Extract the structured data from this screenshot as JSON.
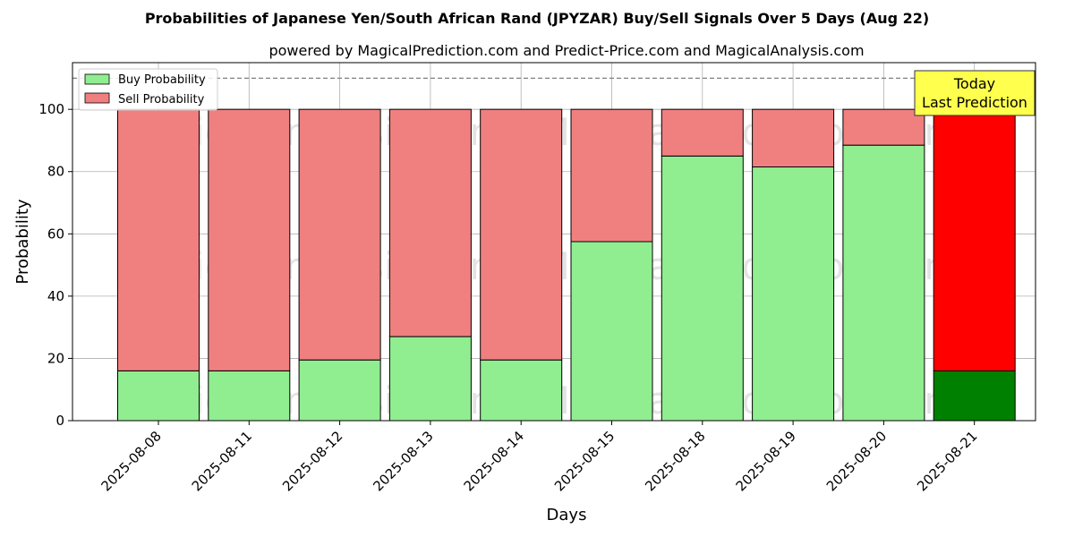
{
  "chart_data": {
    "type": "bar",
    "stacked": true,
    "title": "Probabilities of Japanese Yen/South African Rand (JPYZAR) Buy/Sell Signals Over 5 Days (Aug 22)",
    "subtitle": "powered by MagicalPrediction.com and Predict-Price.com and MagicalAnalysis.com",
    "xlabel": "Days",
    "ylabel": "Probability",
    "ylim": [
      0,
      115
    ],
    "yticks": [
      0,
      20,
      40,
      60,
      80,
      100
    ],
    "grid": true,
    "legend_position": "top-left",
    "reference_line": 110,
    "categories": [
      "2025-08-08",
      "2025-08-11",
      "2025-08-12",
      "2025-08-13",
      "2025-08-14",
      "2025-08-15",
      "2025-08-18",
      "2025-08-19",
      "2025-08-20",
      "2025-08-21"
    ],
    "series": [
      {
        "name": "Buy Probability",
        "values": [
          16,
          16,
          19.5,
          27,
          19.5,
          57.5,
          85,
          81.5,
          88.5,
          16
        ],
        "color": "#90ee90",
        "highlight_color": "#008000"
      },
      {
        "name": "Sell Probability",
        "values": [
          84,
          84,
          80.5,
          73,
          80.5,
          42.5,
          15,
          18.5,
          11.5,
          84
        ],
        "color": "#f08080",
        "highlight_color": "#ff0000"
      }
    ],
    "highlight_index": 9,
    "annotation": {
      "line1": "Today",
      "line2": "Last Prediction",
      "color": "#ffff4d"
    },
    "watermarks": [
      "MagicalAnalysis.com",
      "MagicalPrediction.com",
      "MagicalAnalysis.com",
      "MagicalPrediction.com",
      "MagicalAnalysis.com",
      "MagicalPrediction.com"
    ]
  }
}
